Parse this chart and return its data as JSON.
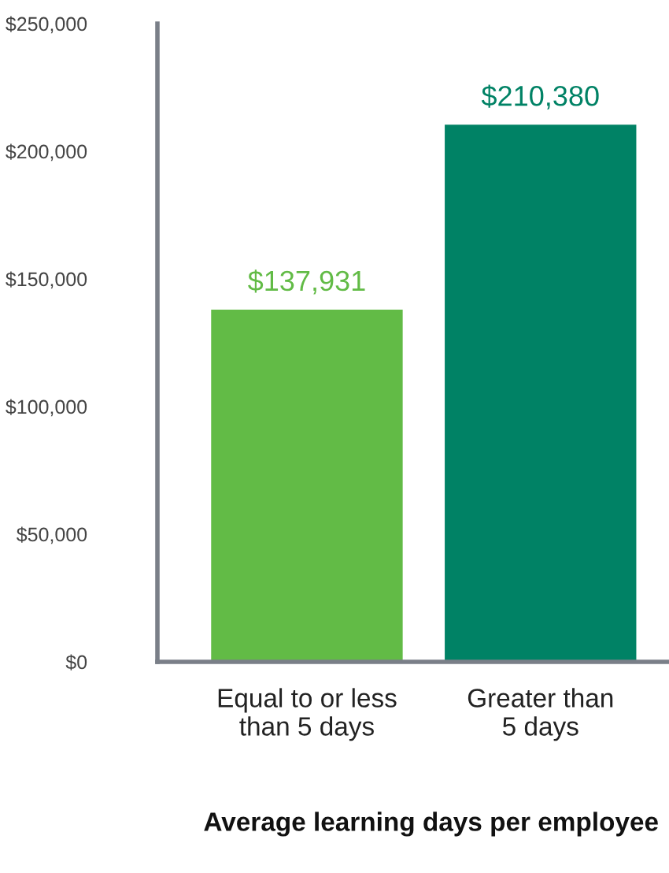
{
  "chart_data": {
    "type": "bar",
    "xlabel": "Average learning days per employee",
    "categories": [
      "Equal to or less\nthan 5 days",
      "Greater than\n5 days"
    ],
    "values": [
      137931,
      210380
    ],
    "colors": [
      "#62bb46",
      "#008265"
    ],
    "value_labels": [
      "$137,931",
      "$210,380"
    ],
    "ylim": [
      0,
      250000
    ],
    "yticks": [
      {
        "value": 0,
        "label": "$0"
      },
      {
        "value": 50000,
        "label": "$50,000"
      },
      {
        "value": 100000,
        "label": "$100,000"
      },
      {
        "value": 150000,
        "label": "$150,000"
      },
      {
        "value": 200000,
        "label": "$200,000"
      },
      {
        "value": 250000,
        "label": "$250,000"
      }
    ],
    "grid": false,
    "legend": false
  }
}
